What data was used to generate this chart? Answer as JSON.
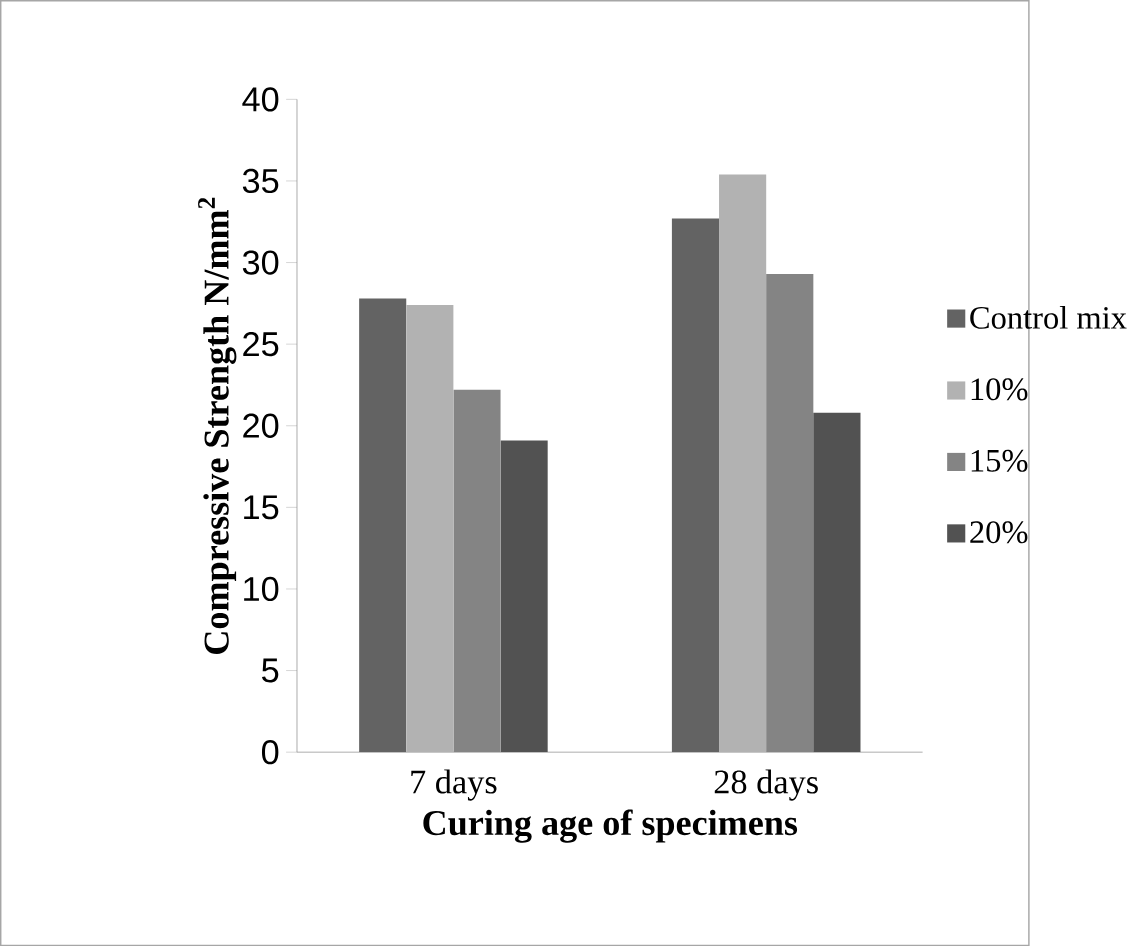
{
  "chart_data": {
    "type": "bar",
    "xlabel": "Curing age of specimens",
    "ylabel": "Compressive Strength N/mm$^{2}$",
    "categories": [
      "7 days",
      "28 days"
    ],
    "series": [
      {
        "name": "Control mix",
        "color": "#636363",
        "values": [
          27.8,
          32.7
        ]
      },
      {
        "name": "10%",
        "color": "#b2b2b2",
        "values": [
          27.4,
          35.4
        ]
      },
      {
        "name": "15%",
        "color": "#848484",
        "values": [
          22.2,
          29.3
        ]
      },
      {
        "name": "20%",
        "color": "#525252",
        "values": [
          19.1,
          20.8
        ]
      }
    ],
    "ylim": [
      0,
      40
    ],
    "yticks": [
      0,
      5,
      10,
      15,
      20,
      25,
      30,
      35,
      40
    ],
    "grid": false,
    "legend": "right"
  }
}
